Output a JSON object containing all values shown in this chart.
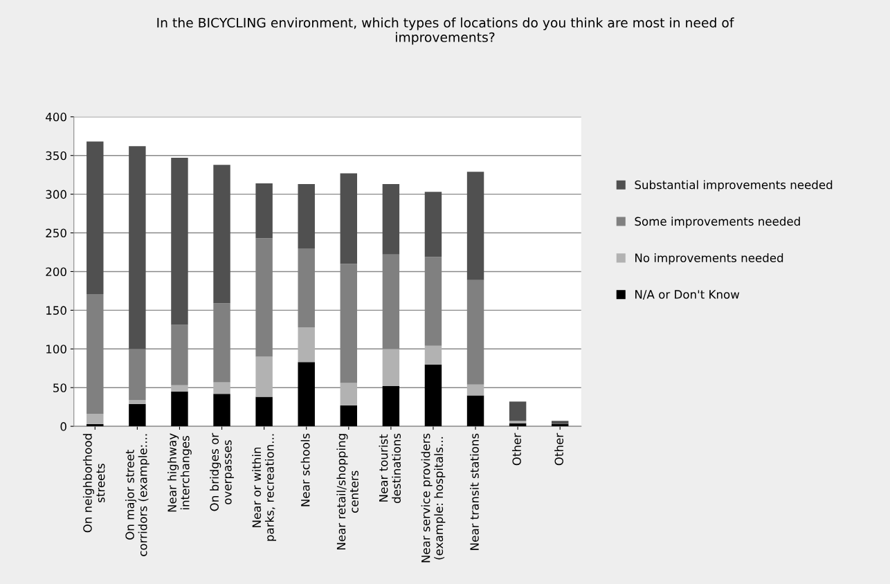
{
  "chart_data": {
    "type": "bar",
    "stacked": true,
    "title": "In the BICYCLING environment, which types of locations do you think are most in need of\nimprovements?",
    "categories": [
      "On neighborhood\nstreets",
      "On major street\ncorridors (example:...",
      "Near highway\ninterchanges",
      "On bridges or\noverpasses",
      "Near or within\nparks, recreation...",
      "Near schools",
      "Near retail/shopping\ncenters",
      "Near tourist\ndestinations",
      "Near service providers\n(example: hospitals...",
      "Near transit stations",
      "Other",
      "Other"
    ],
    "series": [
      {
        "name": "N/A or Don't Know",
        "color": "#000000",
        "values": [
          3,
          29,
          45,
          42,
          38,
          83,
          27,
          52,
          80,
          40,
          4,
          3
        ]
      },
      {
        "name": "No improvements needed",
        "color": "#b2b2b2",
        "values": [
          13,
          5,
          8,
          15,
          52,
          45,
          29,
          48,
          24,
          14,
          3,
          0
        ]
      },
      {
        "name": "Some improvements needed",
        "color": "#808080",
        "values": [
          155,
          66,
          78,
          102,
          153,
          102,
          154,
          122,
          115,
          135,
          0,
          0
        ]
      },
      {
        "name": "Substantial improvements needed",
        "color": "#505050",
        "values": [
          197,
          262,
          216,
          179,
          71,
          83,
          117,
          91,
          84,
          140,
          25,
          4
        ]
      }
    ],
    "ylim": [
      0,
      400
    ],
    "yticks": [
      0,
      50,
      100,
      150,
      200,
      250,
      300,
      350,
      400
    ],
    "grid": "y",
    "legend": "right"
  }
}
